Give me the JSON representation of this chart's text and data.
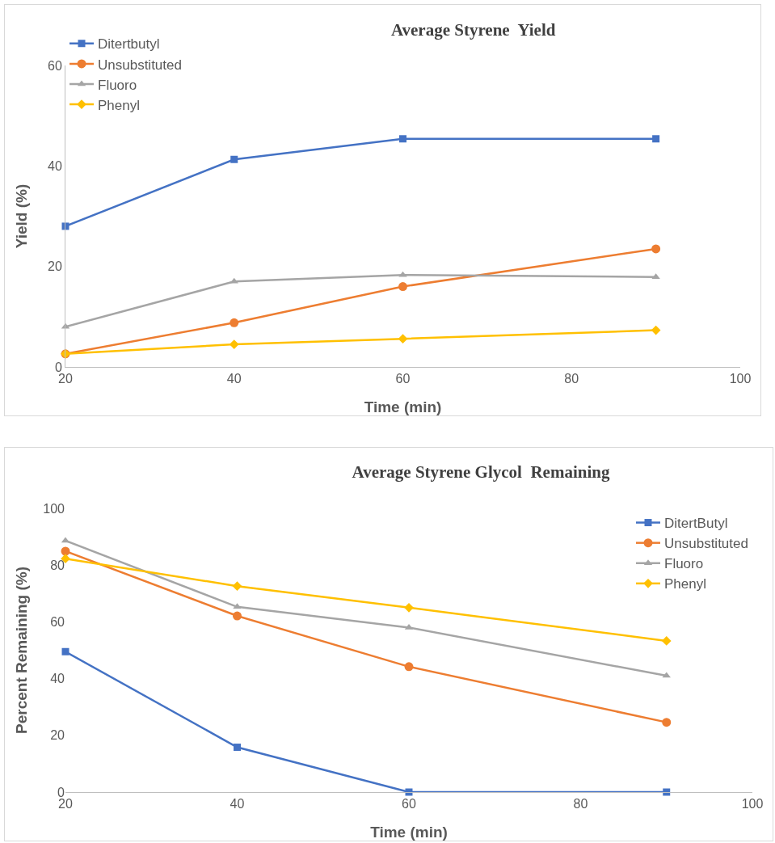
{
  "chart_data": [
    {
      "type": "line",
      "title": "Average Styrene  Yield",
      "xlabel": "Time (min)",
      "ylabel": "Yield (%)",
      "x": [
        20,
        40,
        60,
        90
      ],
      "xlim": [
        20,
        100
      ],
      "xticks": [
        20,
        40,
        60,
        80,
        100
      ],
      "ylim": [
        0,
        60
      ],
      "yticks": [
        0,
        20,
        40,
        60
      ],
      "grid": false,
      "legend": "top left",
      "series": [
        {
          "name": "Ditertbutyl",
          "color": "#4472c4",
          "marker": "square",
          "values": [
            28,
            41.3,
            45.4,
            45.4
          ]
        },
        {
          "name": "Unsubstituted",
          "color": "#ed7d31",
          "marker": "circle",
          "values": [
            2.6,
            8.8,
            16,
            23.5
          ]
        },
        {
          "name": "Fluoro",
          "color": "#a5a5a5",
          "marker": "triangle",
          "values": [
            8,
            17,
            18.3,
            17.9
          ]
        },
        {
          "name": "Phenyl",
          "color": "#ffc000",
          "marker": "diamond",
          "values": [
            2.6,
            4.5,
            5.6,
            7.3
          ]
        }
      ]
    },
    {
      "type": "line",
      "title": "Average Styrene Glycol  Remaining",
      "xlabel": "Time (min)",
      "ylabel": "Percent Remaining (%)",
      "x": [
        20,
        40,
        60,
        90
      ],
      "xlim": [
        20,
        100
      ],
      "xticks": [
        20,
        40,
        60,
        80,
        100
      ],
      "ylim": [
        0,
        100
      ],
      "yticks": [
        0,
        20,
        40,
        60,
        80,
        100
      ],
      "grid": false,
      "legend": "top right",
      "series": [
        {
          "name": "DitertButyl",
          "color": "#4472c4",
          "marker": "square",
          "values": [
            49.5,
            15.8,
            0,
            0
          ]
        },
        {
          "name": "Unsubstituted",
          "color": "#ed7d31",
          "marker": "circle",
          "values": [
            84.9,
            62.1,
            44.2,
            24.6
          ]
        },
        {
          "name": "Fluoro",
          "color": "#a5a5a5",
          "marker": "triangle",
          "values": [
            88.6,
            65.3,
            58,
            41
          ]
        },
        {
          "name": "Phenyl",
          "color": "#ffc000",
          "marker": "diamond",
          "values": [
            82.3,
            72.6,
            65,
            53.3
          ]
        }
      ]
    }
  ]
}
